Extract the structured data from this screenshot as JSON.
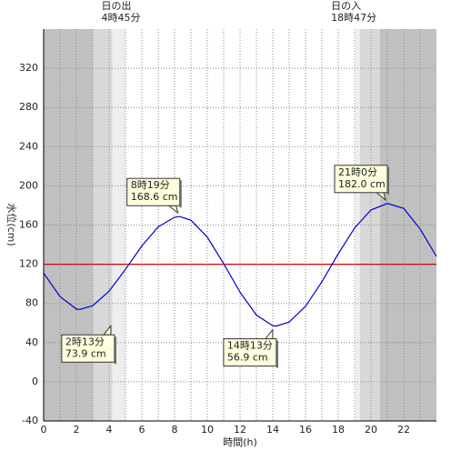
{
  "chart_data": {
    "type": "line",
    "ylabel": "水位(cm)",
    "xlabel": "時間(h)",
    "sunrise": [
      "日の出",
      "4時45分"
    ],
    "sunrise_x": 4.75,
    "sunset": [
      "日の入",
      "18時47分"
    ],
    "sunset_x": 18.783,
    "xlim": [
      0,
      24
    ],
    "ylim": [
      -40,
      360
    ],
    "xticks": [
      0,
      2,
      4,
      6,
      8,
      10,
      12,
      14,
      16,
      18,
      20,
      22
    ],
    "xminor": [
      1,
      3,
      5,
      7,
      9,
      11,
      13,
      15,
      17,
      19,
      21,
      23
    ],
    "yticks": [
      -40,
      0,
      40,
      80,
      120,
      160,
      200,
      240,
      280,
      320
    ],
    "grid": true,
    "threshold": 120,
    "threshold_color": "#e00000",
    "shading": [
      {
        "x": [
          0,
          3
        ],
        "color": "#c0c0c0"
      },
      {
        "x": [
          3,
          4.2
        ],
        "color": "#d8d8d8"
      },
      {
        "x": [
          4.2,
          5
        ],
        "color": "#eeeeee"
      },
      {
        "x": [
          19.05,
          19.33
        ],
        "color": "#eeeeee"
      },
      {
        "x": [
          19.33,
          20.55
        ],
        "color": "#d8d8d8"
      },
      {
        "x": [
          20.55,
          24
        ],
        "color": "#c0c0c0"
      }
    ],
    "series": [
      {
        "name": "水位",
        "color": "#0000cc",
        "x": [
          0,
          1,
          2,
          2.217,
          3,
          4,
          5,
          6,
          7,
          8,
          8.317,
          9,
          10,
          11,
          12,
          13,
          14,
          14.217,
          15,
          16,
          17,
          18,
          19,
          20,
          21,
          22,
          23,
          24
        ],
        "values": [
          111,
          87,
          74.2,
          73.9,
          77.7,
          92.5,
          114.8,
          138.7,
          158.1,
          168.0,
          168.6,
          164.9,
          147.7,
          120.6,
          91.5,
          68.1,
          57.3,
          56.9,
          61.0,
          77.0,
          102.1,
          130.7,
          157.0,
          175.4,
          182.0,
          177,
          156,
          128
        ]
      }
    ],
    "annotations": [
      {
        "x": 2.217,
        "y": 73.9,
        "lines": [
          "2時13分",
          "73.9 cm"
        ]
      },
      {
        "x": 8.317,
        "y": 168.6,
        "lines": [
          "8時19分",
          "168.6 cm"
        ]
      },
      {
        "x": 14.217,
        "y": 56.9,
        "lines": [
          "14時13分",
          "56.9 cm"
        ]
      },
      {
        "x": 21.0,
        "y": 182.0,
        "lines": [
          "21時0分",
          "182.0 cm"
        ]
      }
    ]
  }
}
